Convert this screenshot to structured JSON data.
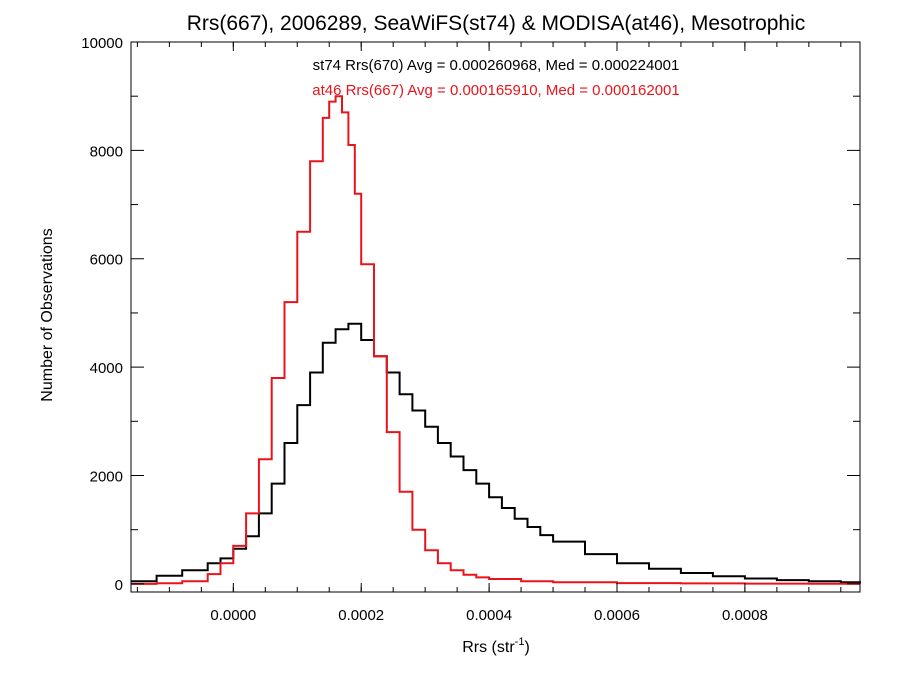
{
  "chart_data": {
    "type": "line",
    "title": "Rrs(667), 2006289, SeaWiFS(st74) & MODISA(at46), Mesotrophic",
    "xlabel": "Rrs (str",
    "xlabel_sup": "-1",
    "xlabel_close": ")",
    "ylabel": "Number of Observations",
    "xlim": [
      -0.00016,
      0.00098
    ],
    "ylim": [
      -150,
      10000
    ],
    "x_ticks": [
      0.0,
      0.0002,
      0.0004,
      0.0006,
      0.0008
    ],
    "x_tick_labels": [
      "0.0000",
      "0.0002",
      "0.0004",
      "0.0006",
      "0.0008"
    ],
    "y_ticks": [
      0,
      2000,
      4000,
      6000,
      8000,
      10000
    ],
    "y_tick_labels": [
      "0",
      "2000",
      "4000",
      "6000",
      "8000",
      "10000"
    ],
    "grid": false,
    "annotations": [
      {
        "text": "st74 Rrs(670) Avg = 0.000260968, Med = 0.000224001",
        "color": "#000000"
      },
      {
        "text": "at46 Rrs(667) Avg = 0.000165910, Med = 0.000162001",
        "color": "#e8141c"
      }
    ],
    "series": [
      {
        "color": "#000000",
        "x": [
          -0.00016,
          -0.00012,
          -8e-05,
          -4e-05,
          -2e-05,
          0.0,
          2e-05,
          4e-05,
          6e-05,
          8e-05,
          0.0001,
          0.00012,
          0.00014,
          0.00016,
          0.00018,
          0.0002,
          0.00022,
          0.00024,
          0.00026,
          0.00028,
          0.0003,
          0.00032,
          0.00034,
          0.00036,
          0.00038,
          0.0004,
          0.00042,
          0.00044,
          0.00046,
          0.00048,
          0.0005,
          0.00055,
          0.0006,
          0.00065,
          0.0007,
          0.00075,
          0.0008,
          0.00085,
          0.0009,
          0.00095,
          0.00098
        ],
        "y": [
          50,
          150,
          250,
          380,
          470,
          650,
          880,
          1300,
          1850,
          2600,
          3300,
          3900,
          4450,
          4700,
          4800,
          4500,
          4200,
          3900,
          3500,
          3200,
          2900,
          2600,
          2350,
          2100,
          1850,
          1600,
          1400,
          1200,
          1050,
          900,
          780,
          550,
          380,
          280,
          200,
          140,
          100,
          70,
          50,
          30,
          20
        ]
      },
      {
        "color": "#e8141c",
        "x": [
          -0.00016,
          -0.00012,
          -8e-05,
          -4e-05,
          -2e-05,
          0.0,
          2e-05,
          4e-05,
          6e-05,
          8e-05,
          0.0001,
          0.00012,
          0.00014,
          0.00015,
          0.00016,
          0.00017,
          0.00018,
          0.00019,
          0.0002,
          0.00022,
          0.00024,
          0.00026,
          0.00028,
          0.0003,
          0.00032,
          0.00034,
          0.00036,
          0.00038,
          0.0004,
          0.00045,
          0.0005,
          0.0006,
          0.0007,
          0.0008,
          0.0009,
          0.00098
        ],
        "y": [
          0,
          10,
          50,
          180,
          380,
          700,
          1300,
          2300,
          3800,
          5200,
          6500,
          7800,
          8600,
          8900,
          9000,
          8700,
          8100,
          7200,
          5900,
          4200,
          2800,
          1700,
          1000,
          620,
          380,
          250,
          170,
          120,
          90,
          50,
          30,
          15,
          8,
          5,
          3,
          2
        ]
      }
    ]
  }
}
